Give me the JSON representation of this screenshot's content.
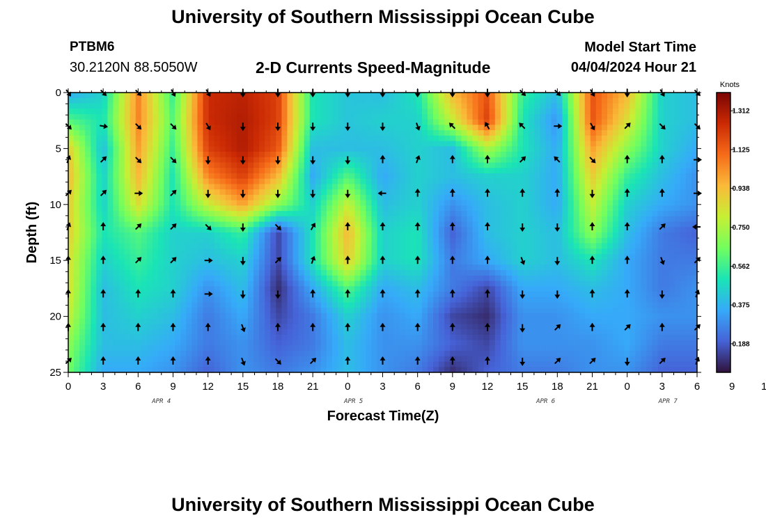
{
  "header": {
    "title": "University of Southern Mississippi Ocean Cube",
    "station_id": "PTBM6",
    "coordinates": "30.2120N  88.5050W",
    "subtitle": "2-D Currents Speed-Magnitude",
    "model_start_label": "Model Start Time",
    "model_start_value": "04/04/2024 Hour 21"
  },
  "footer": {
    "title": "University of Southern Mississippi Ocean Cube"
  },
  "chart_data": {
    "type": "heatmap",
    "xlabel": "Forecast Time(Z)",
    "ylabel": "Depth (ft)",
    "xlim": [
      0,
      54
    ],
    "ylim": [
      0,
      25
    ],
    "x_tick_labels": [
      "0",
      "3",
      "6",
      "9",
      "12",
      "15",
      "18",
      "21",
      "0",
      "3",
      "6",
      "9",
      "12",
      "15",
      "18",
      "21",
      "0",
      "3",
      "6",
      "9",
      "12",
      "15",
      "18",
      "21",
      "0",
      "3",
      "6"
    ],
    "y_ticks": [
      0,
      5,
      10,
      15,
      20,
      25
    ],
    "y_tick_labels": [
      "0",
      "5",
      "10",
      "15",
      "20",
      "25"
    ],
    "date_labels": [
      {
        "label": "APR 4",
        "hour": 8
      },
      {
        "label": "APR 5",
        "hour": 24.5
      },
      {
        "label": "APR 6",
        "hour": 41
      },
      {
        "label": "APR 7",
        "hour": 51.5
      }
    ],
    "colorbar": {
      "title": "Knots",
      "ticks": [
        0.188,
        0.375,
        0.562,
        0.75,
        0.938,
        1.125,
        1.312
      ],
      "tick_labels": [
        "0.188",
        "0.375",
        "0.562",
        "0.750",
        "0.938",
        "1.125",
        "1.312"
      ],
      "min": 0.05,
      "max": 1.4,
      "colors": [
        "#30123b",
        "#4662d7",
        "#36aaf9",
        "#1ae4b6",
        "#72fe5e",
        "#c7ef34",
        "#faba39",
        "#f66b19",
        "#cb2a04",
        "#7a0403"
      ]
    },
    "speed_hours": [
      0,
      3,
      6,
      9,
      12,
      15,
      18,
      21,
      24,
      27,
      30,
      33,
      36,
      39,
      42,
      45,
      48,
      51,
      54
    ],
    "speed_depths": [
      0,
      2.5,
      5,
      7.5,
      10,
      12.5,
      15,
      17.5,
      20,
      22.5,
      25
    ],
    "speed_knots": [
      [
        0.35,
        0.45,
        1.05,
        0.55,
        1.25,
        1.28,
        1.2,
        0.5,
        0.42,
        0.4,
        0.5,
        0.95,
        1.15,
        0.55,
        0.4,
        1.15,
        0.95,
        0.45,
        0.4
      ],
      [
        0.6,
        0.5,
        1.05,
        0.6,
        1.25,
        1.3,
        1.2,
        0.5,
        0.42,
        0.45,
        0.45,
        0.8,
        1.2,
        0.5,
        0.3,
        1.15,
        0.85,
        0.45,
        0.4
      ],
      [
        0.9,
        0.4,
        1.0,
        0.55,
        1.2,
        1.3,
        1.15,
        0.4,
        0.4,
        0.4,
        0.45,
        0.4,
        0.75,
        0.5,
        0.35,
        1.0,
        0.7,
        0.45,
        0.35
      ],
      [
        0.95,
        0.45,
        0.95,
        0.5,
        1.05,
        1.2,
        0.95,
        0.35,
        0.6,
        0.35,
        0.45,
        0.4,
        0.45,
        0.45,
        0.35,
        0.9,
        0.55,
        0.4,
        0.3
      ],
      [
        0.9,
        0.45,
        0.85,
        0.5,
        0.8,
        1.0,
        0.7,
        0.45,
        0.8,
        0.4,
        0.45,
        0.3,
        0.4,
        0.45,
        0.35,
        0.8,
        0.45,
        0.35,
        0.3
      ],
      [
        0.9,
        0.5,
        0.6,
        0.45,
        0.45,
        0.55,
        0.15,
        0.5,
        0.95,
        0.45,
        0.5,
        0.2,
        0.4,
        0.45,
        0.4,
        0.7,
        0.4,
        0.25,
        0.2
      ],
      [
        0.85,
        0.45,
        0.55,
        0.45,
        0.4,
        0.45,
        0.15,
        0.5,
        0.9,
        0.45,
        0.5,
        0.25,
        0.35,
        0.45,
        0.4,
        0.5,
        0.35,
        0.25,
        0.25
      ],
      [
        0.85,
        0.4,
        0.5,
        0.45,
        0.3,
        0.4,
        0.1,
        0.35,
        0.6,
        0.35,
        0.4,
        0.25,
        0.15,
        0.35,
        0.35,
        0.4,
        0.35,
        0.25,
        0.3
      ],
      [
        0.8,
        0.4,
        0.45,
        0.4,
        0.25,
        0.35,
        0.15,
        0.25,
        0.45,
        0.3,
        0.35,
        0.15,
        0.1,
        0.3,
        0.3,
        0.35,
        0.35,
        0.3,
        0.3
      ],
      [
        0.7,
        0.4,
        0.4,
        0.35,
        0.25,
        0.3,
        0.2,
        0.25,
        0.4,
        0.3,
        0.3,
        0.2,
        0.15,
        0.3,
        0.3,
        0.3,
        0.35,
        0.25,
        0.25
      ],
      [
        0.65,
        0.35,
        0.35,
        0.3,
        0.2,
        0.3,
        0.25,
        0.3,
        0.4,
        0.3,
        0.25,
        0.1,
        0.2,
        0.25,
        0.25,
        0.3,
        0.3,
        0.2,
        0.2
      ]
    ],
    "arrow_hours": [
      0,
      3,
      6,
      9,
      12,
      15,
      18,
      21,
      24,
      27,
      30,
      33,
      36,
      39,
      42,
      45,
      48,
      51,
      54
    ],
    "arrow_depths": [
      0,
      3,
      6,
      9,
      12,
      15,
      18,
      21,
      24
    ],
    "arrow_dirs_deg": [
      [
        145,
        135,
        135,
        150,
        150,
        180,
        180,
        180,
        180,
        180,
        180,
        180,
        180,
        135,
        135,
        150,
        180,
        150,
        135
      ],
      [
        135,
        100,
        135,
        135,
        150,
        180,
        180,
        180,
        180,
        180,
        160,
        315,
        330,
        315,
        90,
        150,
        45,
        135,
        135
      ],
      [
        20,
        45,
        135,
        135,
        180,
        180,
        180,
        180,
        180,
        0,
        20,
        0,
        0,
        45,
        315,
        135,
        0,
        0,
        90
      ],
      [
        45,
        45,
        90,
        45,
        180,
        180,
        180,
        180,
        180,
        270,
        0,
        0,
        0,
        0,
        0,
        180,
        0,
        0,
        90
      ],
      [
        20,
        0,
        45,
        45,
        135,
        180,
        135,
        30,
        0,
        0,
        0,
        0,
        0,
        180,
        180,
        0,
        0,
        45,
        270
      ],
      [
        0,
        0,
        45,
        45,
        90,
        180,
        45,
        20,
        0,
        0,
        0,
        0,
        0,
        160,
        180,
        0,
        0,
        160,
        45
      ],
      [
        0,
        0,
        0,
        0,
        90,
        180,
        180,
        0,
        0,
        0,
        0,
        0,
        0,
        180,
        180,
        0,
        0,
        180,
        20
      ],
      [
        0,
        0,
        0,
        0,
        0,
        160,
        0,
        0,
        0,
        0,
        0,
        0,
        0,
        180,
        45,
        0,
        45,
        0,
        45
      ],
      [
        45,
        0,
        0,
        0,
        0,
        160,
        135,
        45,
        0,
        0,
        0,
        0,
        0,
        180,
        45,
        45,
        180,
        45,
        20
      ]
    ]
  }
}
